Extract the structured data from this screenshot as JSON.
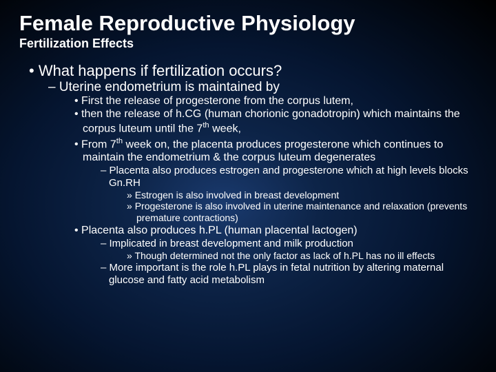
{
  "title": "Female Reproductive Physiology",
  "subtitle": "Fertilization Effects",
  "b1": "What happens if fertilization occurs?",
  "b1_1": "Uterine endometrium is maintained by",
  "b1_1_a": "First the release of progesterone from the corpus lutem,",
  "b1_1_b": "then the release of h.CG (human chorionic gonadotropin) which maintains the corpus luteum until the 7",
  "b1_1_b_end": " week,",
  "b1_1_c": "From 7",
  "b1_1_c_end": " week on, the placenta produces progesterone which continues to maintain the endometrium & the corpus luteum degenerates",
  "b1_1_c_1": "Placenta also produces estrogen and progesterone which at high levels blocks Gn.RH",
  "b1_1_c_1_a": "Estrogen is also involved in breast development",
  "b1_1_c_1_b": "Progesterone is also involved in uterine maintenance and relaxation (prevents premature contractions)",
  "b1_1_d": "Placenta also produces h.PL (human placental lactogen)",
  "b1_1_d_1": "Implicated in breast development and milk production",
  "b1_1_d_1_a": "Though determined not the only factor as lack of h.PL has no ill effects",
  "b1_1_d_2": "More important is the role h.PL plays in fetal nutrition by altering maternal glucose and fatty acid metabolism",
  "th": "th"
}
